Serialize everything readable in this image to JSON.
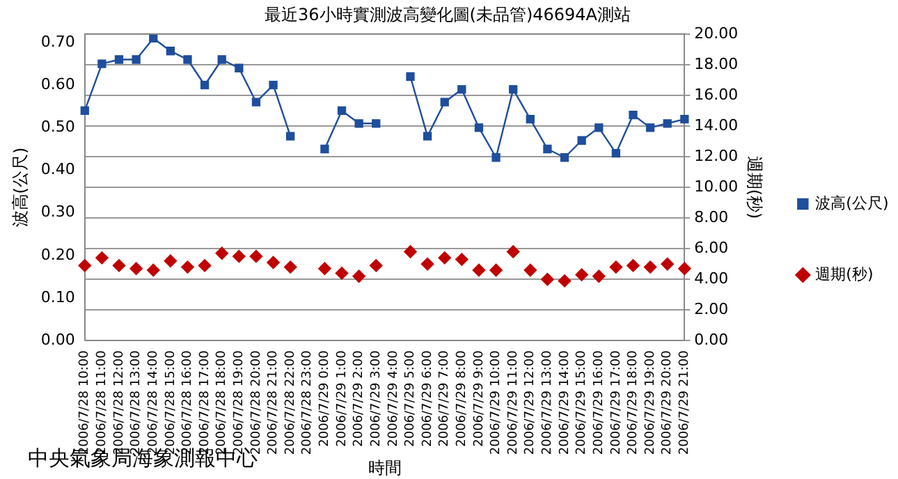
{
  "chart_data": {
    "type": "line",
    "title": "最近36小時實測波高變化圖(未品管)46694A測站",
    "xlabel": "時間",
    "ylabel": "波高(公尺)",
    "y2label": "週期(秒)",
    "annotations": [
      "中央氣象局海象測報中心"
    ],
    "categories": [
      "2006/7/28 10:00",
      "2006/7/28 11:00",
      "2006/7/28 12:00",
      "2006/7/28 13:00",
      "2006/7/28 14:00",
      "2006/7/28 15:00",
      "2006/7/28 16:00",
      "2006/7/28 17:00",
      "2006/7/28 18:00",
      "2006/7/28 19:00",
      "2006/7/28 20:00",
      "2006/7/28 21:00",
      "2006/7/28 22:00",
      "2006/7/28 23:00",
      "2006/7/29 0:00",
      "2006/7/29 1:00",
      "2006/7/29 2:00",
      "2006/7/29 3:00",
      "2006/7/29 4:00",
      "2006/7/29 5:00",
      "2006/7/29 6:00",
      "2006/7/29 7:00",
      "2006/7/29 8:00",
      "2006/7/29 9:00",
      "2006/7/29 10:00",
      "2006/7/29 11:00",
      "2006/7/29 12:00",
      "2006/7/29 13:00",
      "2006/7/29 14:00",
      "2006/7/29 15:00",
      "2006/7/29 16:00",
      "2006/7/29 17:00",
      "2006/7/29 18:00",
      "2006/7/29 19:00",
      "2006/7/29 20:00",
      "2006/7/29 21:00"
    ],
    "series": [
      {
        "name": "波高(公尺)",
        "type": "line",
        "marker": "square",
        "color": "#1f4e9c",
        "values": [
          0.54,
          0.65,
          0.66,
          0.66,
          0.71,
          0.68,
          0.66,
          0.6,
          0.66,
          0.64,
          0.56,
          0.6,
          0.48,
          null,
          0.45,
          0.54,
          0.51,
          0.51,
          null,
          0.62,
          0.48,
          0.56,
          0.59,
          0.5,
          0.43,
          0.59,
          0.52,
          0.45,
          0.43,
          0.47,
          0.5,
          0.44,
          0.53,
          0.5,
          0.51,
          0.52
        ]
      },
      {
        "name": "週期(秒)",
        "type": "scatter",
        "marker": "diamond",
        "axis": "y2",
        "color": "#c00000",
        "values": [
          4.9,
          5.4,
          4.9,
          4.7,
          4.6,
          5.2,
          4.8,
          4.9,
          5.7,
          5.5,
          5.5,
          5.1,
          4.8,
          null,
          4.7,
          4.4,
          4.2,
          4.9,
          null,
          5.8,
          5.0,
          5.4,
          5.3,
          4.6,
          4.6,
          5.8,
          4.6,
          4.0,
          3.9,
          4.3,
          4.2,
          4.8,
          4.9,
          4.8,
          5.0,
          4.7
        ]
      }
    ],
    "ylim": [
      0,
      0.72
    ],
    "yticks": [
      {
        "value": 0,
        "label": "0.00"
      },
      {
        "value": 0.1,
        "label": "0.10"
      },
      {
        "value": 0.2,
        "label": "0.20"
      },
      {
        "value": 0.3,
        "label": "0.30"
      },
      {
        "value": 0.4,
        "label": "0.40"
      },
      {
        "value": 0.5,
        "label": "0.50"
      },
      {
        "value": 0.6,
        "label": "0.60"
      },
      {
        "value": 0.7,
        "label": "0.70"
      }
    ],
    "y2lim": [
      0,
      20
    ],
    "y2ticks": [
      {
        "value": 0,
        "label": "0.00"
      },
      {
        "value": 2,
        "label": "2.00"
      },
      {
        "value": 4,
        "label": "4.00"
      },
      {
        "value": 6,
        "label": "6.00"
      },
      {
        "value": 8,
        "label": "8.00"
      },
      {
        "value": 10,
        "label": "10.00"
      },
      {
        "value": 12,
        "label": "12.00"
      },
      {
        "value": 14,
        "label": "14.00"
      },
      {
        "value": 16,
        "label": "16.00"
      },
      {
        "value": 18,
        "label": "18.00"
      },
      {
        "value": 20,
        "label": "20.00"
      }
    ],
    "grid": "y2",
    "legend": "right"
  }
}
